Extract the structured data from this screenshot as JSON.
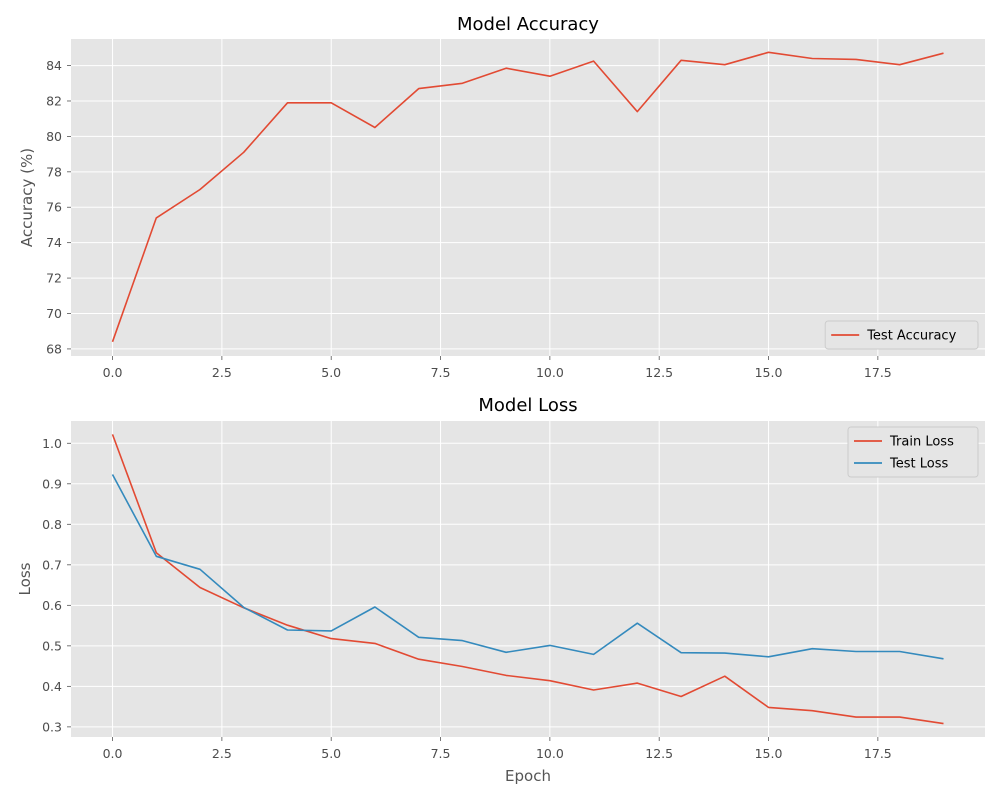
{
  "chart_data": [
    {
      "type": "line",
      "title": "Model Accuracy",
      "xlabel": "",
      "ylabel": "Accuracy (%)",
      "xlim": [
        -0.95,
        19.95
      ],
      "ylim": [
        67.6,
        85.5
      ],
      "x_ticks": [
        0,
        2.5,
        5,
        7.5,
        10,
        12.5,
        15,
        17.5
      ],
      "x_tick_labels": [
        "0.0",
        "2.5",
        "5.0",
        "7.5",
        "10.0",
        "12.5",
        "15.0",
        "17.5"
      ],
      "y_ticks": [
        68,
        70,
        72,
        74,
        76,
        78,
        80,
        82,
        84
      ],
      "y_tick_labels": [
        "68",
        "70",
        "72",
        "74",
        "76",
        "78",
        "80",
        "82",
        "84"
      ],
      "grid": true,
      "legend_position": "lower-right",
      "x": [
        0,
        1,
        2,
        3,
        4,
        5,
        6,
        7,
        8,
        9,
        10,
        11,
        12,
        13,
        14,
        15,
        16,
        17,
        18,
        19
      ],
      "series": [
        {
          "name": "Test Accuracy",
          "color": "#E24A33",
          "values": [
            68.4,
            75.4,
            77.0,
            79.1,
            81.9,
            81.9,
            80.5,
            82.7,
            83.0,
            83.85,
            83.4,
            84.25,
            81.4,
            84.3,
            84.05,
            84.75,
            84.4,
            84.35,
            84.05,
            84.7
          ]
        }
      ]
    },
    {
      "type": "line",
      "title": "Model Loss",
      "xlabel": "Epoch",
      "ylabel": "Loss",
      "xlim": [
        -0.95,
        19.95
      ],
      "ylim": [
        0.275,
        1.055
      ],
      "x_ticks": [
        0,
        2.5,
        5,
        7.5,
        10,
        12.5,
        15,
        17.5
      ],
      "x_tick_labels": [
        "0.0",
        "2.5",
        "5.0",
        "7.5",
        "10.0",
        "12.5",
        "15.0",
        "17.5"
      ],
      "y_ticks": [
        0.3,
        0.4,
        0.5,
        0.6,
        0.7,
        0.8,
        0.9,
        1.0
      ],
      "y_tick_labels": [
        "0.3",
        "0.4",
        "0.5",
        "0.6",
        "0.7",
        "0.8",
        "0.9",
        "1.0"
      ],
      "grid": true,
      "legend_position": "upper-right",
      "x": [
        0,
        1,
        2,
        3,
        4,
        5,
        6,
        7,
        8,
        9,
        10,
        11,
        12,
        13,
        14,
        15,
        16,
        17,
        18,
        19
      ],
      "series": [
        {
          "name": "Train Loss",
          "color": "#E24A33",
          "values": [
            1.022,
            0.73,
            0.644,
            0.594,
            0.551,
            0.518,
            0.506,
            0.467,
            0.449,
            0.427,
            0.414,
            0.391,
            0.408,
            0.375,
            0.425,
            0.348,
            0.34,
            0.324,
            0.324,
            0.308
          ]
        },
        {
          "name": "Test Loss",
          "color": "#348ABD",
          "values": [
            0.923,
            0.721,
            0.689,
            0.595,
            0.539,
            0.537,
            0.596,
            0.521,
            0.513,
            0.484,
            0.501,
            0.479,
            0.556,
            0.483,
            0.482,
            0.473,
            0.493,
            0.486,
            0.486,
            0.468
          ]
        }
      ]
    }
  ]
}
